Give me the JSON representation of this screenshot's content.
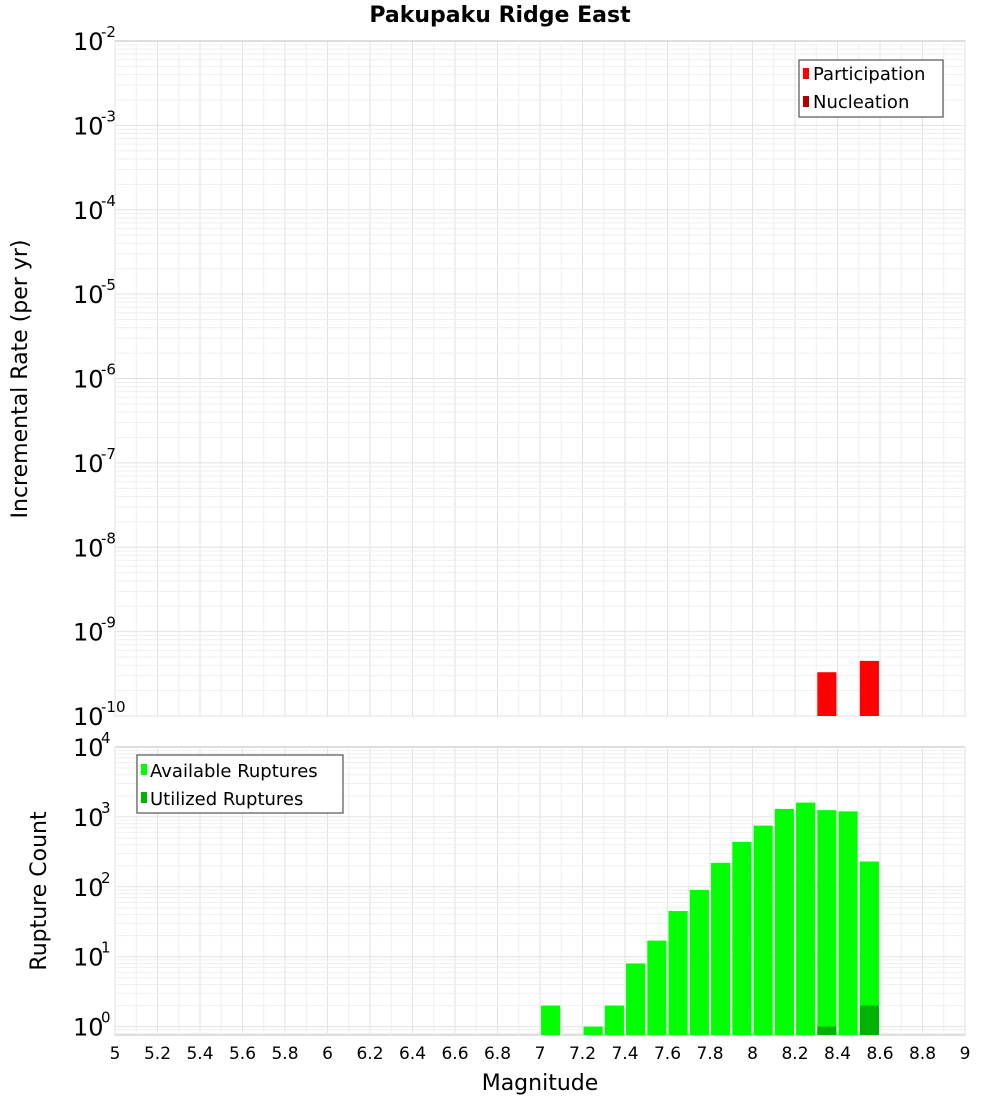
{
  "chart_data": [
    {
      "type": "bar",
      "title": "Pakupaku Ridge East",
      "xlabel": "Magnitude",
      "ylabel": "Incremental Rate (per yr)",
      "yscale": "log",
      "ylim_exp": [
        -10,
        -2
      ],
      "xlim": [
        5,
        9
      ],
      "bar_width": 0.09,
      "legend_position": "top-right",
      "series": [
        {
          "name": "Participation",
          "color": "#ff0000",
          "x": [
            8.35,
            8.55
          ],
          "values": [
            3.3e-10,
            4.5e-10
          ]
        },
        {
          "name": "Nucleation",
          "color": "#b00000",
          "x": [],
          "values": []
        }
      ]
    },
    {
      "type": "bar",
      "title": "",
      "xlabel": "Magnitude",
      "ylabel": "Rupture Count",
      "yscale": "log",
      "ylim_exp": [
        -0.12,
        4
      ],
      "xlim": [
        5,
        9
      ],
      "bar_width": 0.09,
      "legend_position": "top-left",
      "series": [
        {
          "name": "Available Ruptures",
          "color": "#00ff00",
          "x": [
            7.05,
            7.25,
            7.35,
            7.45,
            7.55,
            7.65,
            7.75,
            7.85,
            7.95,
            8.05,
            8.15,
            8.25,
            8.35,
            8.45,
            8.55
          ],
          "values": [
            2,
            1,
            2,
            8,
            17,
            45,
            90,
            220,
            440,
            750,
            1300,
            1600,
            1250,
            1200,
            230
          ]
        },
        {
          "name": "Utilized Ruptures",
          "color": "#00b300",
          "x": [
            8.35,
            8.55
          ],
          "values": [
            1,
            2
          ]
        }
      ]
    }
  ],
  "x_ticks": [
    "5",
    "5.2",
    "5.4",
    "5.6",
    "5.8",
    "6",
    "6.2",
    "6.4",
    "6.6",
    "6.8",
    "7",
    "7.2",
    "7.4",
    "7.6",
    "7.8",
    "8",
    "8.2",
    "8.4",
    "8.6",
    "8.8",
    "9"
  ],
  "top_y_ticks": [
    {
      "base": "10",
      "exp": "-10"
    },
    {
      "base": "10",
      "exp": "-9"
    },
    {
      "base": "10",
      "exp": "-8"
    },
    {
      "base": "10",
      "exp": "-7"
    },
    {
      "base": "10",
      "exp": "-6"
    },
    {
      "base": "10",
      "exp": "-5"
    },
    {
      "base": "10",
      "exp": "-4"
    },
    {
      "base": "10",
      "exp": "-3"
    },
    {
      "base": "10",
      "exp": "-2"
    }
  ],
  "bottom_y_ticks": [
    {
      "base": "10",
      "exp": "0"
    },
    {
      "base": "10",
      "exp": "1"
    },
    {
      "base": "10",
      "exp": "2"
    },
    {
      "base": "10",
      "exp": "3"
    },
    {
      "base": "10",
      "exp": "4"
    }
  ]
}
